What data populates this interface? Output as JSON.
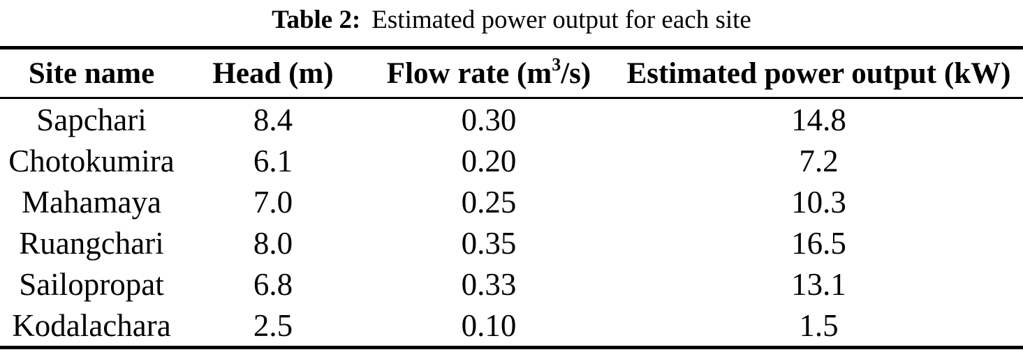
{
  "colors": {
    "text": "#000000",
    "background": "#ffffff",
    "rule": "#000000"
  },
  "caption": {
    "label": "Table 2:",
    "text": "Estimated power output for each site"
  },
  "table": {
    "columns": {
      "site": "Site name",
      "head": "Head (m)",
      "flow_pre": "Flow rate (m",
      "flow_sup": "3",
      "flow_post": "/s)",
      "power": "Estimated power output (kW)"
    },
    "rows": [
      {
        "site": "Sapchari",
        "head": "8.4",
        "flow": "0.30",
        "power": "14.8"
      },
      {
        "site": "Chotokumira",
        "head": "6.1",
        "flow": "0.20",
        "power": "7.2"
      },
      {
        "site": "Mahamaya",
        "head": "7.0",
        "flow": "0.25",
        "power": "10.3"
      },
      {
        "site": "Ruangchari",
        "head": "8.0",
        "flow": "0.35",
        "power": "16.5"
      },
      {
        "site": "Sailopropat",
        "head": "6.8",
        "flow": "0.33",
        "power": "13.1"
      },
      {
        "site": "Kodalachara",
        "head": "2.5",
        "flow": "0.10",
        "power": "1.5"
      }
    ]
  }
}
